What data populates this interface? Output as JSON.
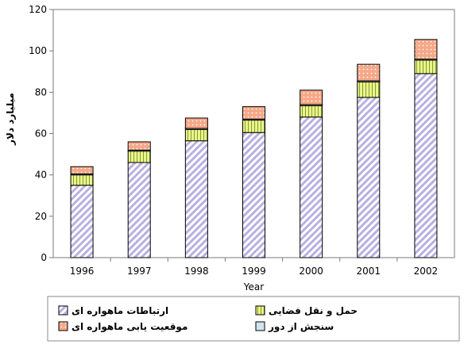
{
  "chart_data": {
    "type": "bar",
    "stacked": true,
    "categories": [
      "1996",
      "1997",
      "1998",
      "1999",
      "2000",
      "2001",
      "2002"
    ],
    "series": [
      {
        "name": "ارتباطات ماهواره ای",
        "values": [
          35,
          46,
          56.5,
          60.5,
          68,
          77.5,
          89
        ],
        "color": "#b8b0e0",
        "pattern": "diagonal-hatch"
      },
      {
        "name": "حمل و نقل فضایی",
        "values": [
          5,
          5.5,
          5.5,
          6,
          5.5,
          7.5,
          6.5
        ],
        "color": "#e8f58a",
        "pattern": "vertical-lines"
      },
      {
        "name": "سنجش از دور",
        "values": [
          0.5,
          0.5,
          0.5,
          0.5,
          0.5,
          0.5,
          0.5
        ],
        "color": "#cfe6ee",
        "pattern": "solid"
      },
      {
        "name": "موقعیت یابی ماهواره ای",
        "values": [
          3.5,
          4,
          5,
          6,
          7,
          8,
          9.5
        ],
        "color": "#f5a888",
        "pattern": "dots"
      }
    ],
    "xlabel": "Year",
    "ylabel": "میلیارد دلار",
    "ylim": [
      0,
      120
    ],
    "yticks": [
      0,
      20,
      40,
      60,
      80,
      100,
      120
    ],
    "grid": false,
    "legend_position": "bottom",
    "legend_columns": [
      [
        "ارتباطات ماهواره ای",
        "موقعیت یابی ماهواره ای"
      ],
      [
        "حمل و نقل فضایی",
        "سنجش از دور"
      ]
    ]
  }
}
